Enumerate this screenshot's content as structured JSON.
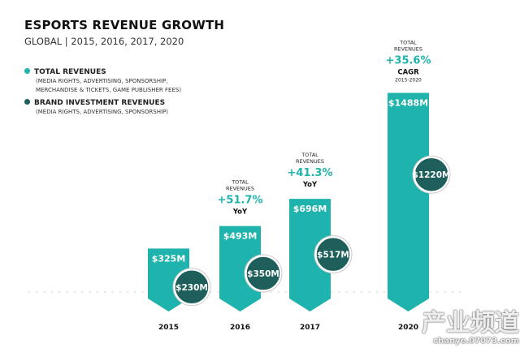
{
  "chart_data": {
    "type": "bar",
    "title": "ESPORTS REVENUE GROWTH",
    "subtitle": "GLOBAL | 2015, 2016, 2017, 2020",
    "categories": [
      "2015",
      "2016",
      "2017",
      "2020"
    ],
    "series": [
      {
        "name": "TOTAL REVENUES",
        "note": "(MEDIA RIGHTS, ADVERTISING, SPONSORSHIP, MERCHANDISE & TICKETS, GAME PUBLISHER FEES)",
        "color": "#1fb3ad",
        "values": [
          325,
          493,
          696,
          1488
        ],
        "labels": [
          "$325M",
          "$493M",
          "$696M",
          "$1488M"
        ]
      },
      {
        "name": "BRAND INVESTMENT REVENUES",
        "note": "(MEDIA RIGHTS, ADVERTISING, SPONSORSHIP)",
        "color": "#1e5f5c",
        "values": [
          230,
          350,
          517,
          1220
        ],
        "labels": [
          "$230M",
          "$350M",
          "$517M",
          "$1220M"
        ]
      }
    ],
    "annotations": [
      null,
      {
        "header": "TOTAL REVENUES",
        "value": "+51.7%",
        "label": "YoY"
      },
      {
        "header": "TOTAL REVENUES",
        "value": "+41.3%",
        "label": "YoY"
      },
      {
        "header": "TOTAL REVENUES",
        "value": "+35.6%",
        "label": "CAGR",
        "sub": "2015-2020"
      }
    ],
    "legend": "top-left",
    "grid": false
  },
  "legend_note_lines": [
    "(MEDIA RIGHTS, ADVERTISING, SPONSORSHIP,",
    "MERCHANDISE & TICKETS, GAME PUBLISHER FEES)"
  ],
  "watermark": {
    "main": "产业频道",
    "url": "chanye.07073.com"
  }
}
